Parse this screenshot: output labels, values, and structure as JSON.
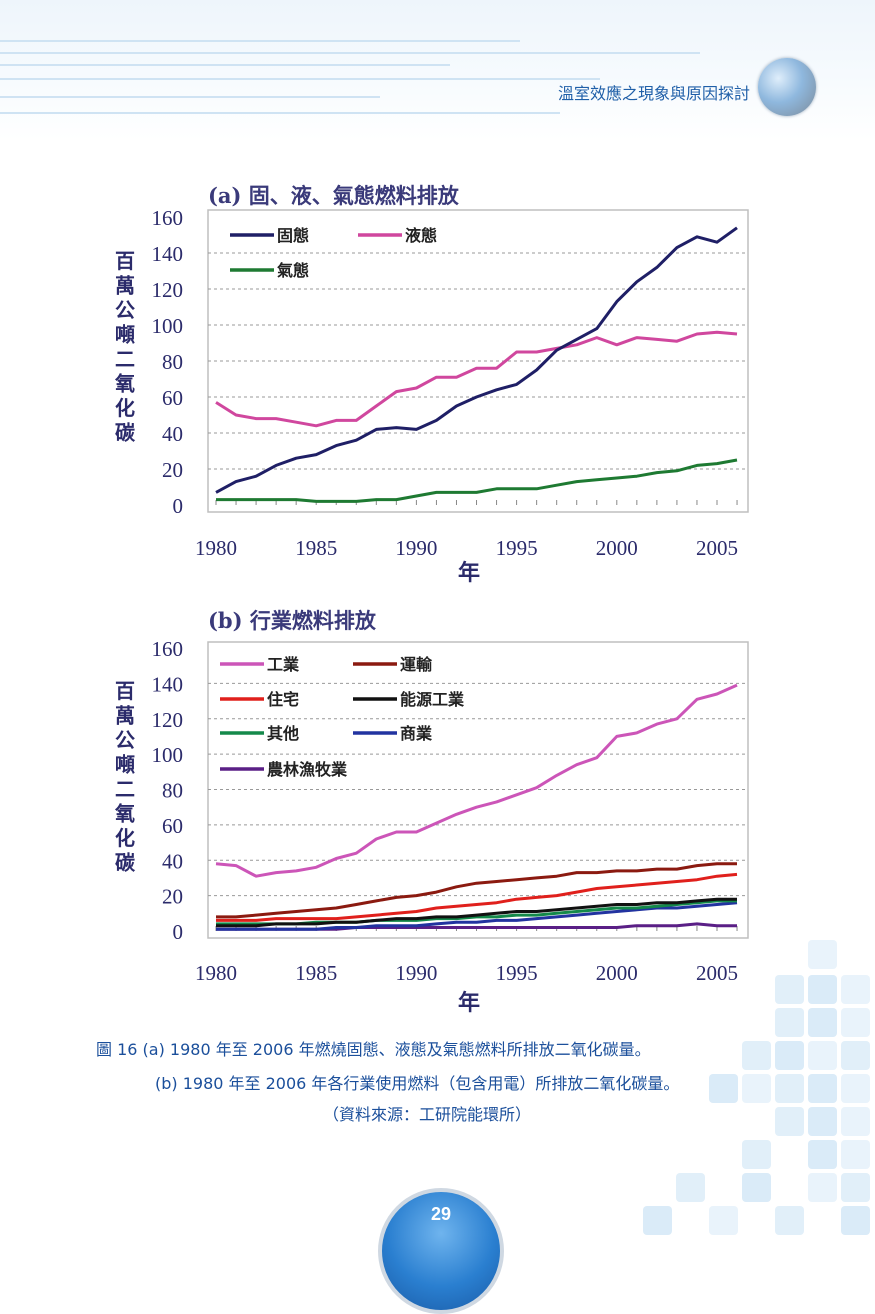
{
  "header": {
    "title": "溫室效應之現象與原因探討",
    "globe_icon": "globe-icon"
  },
  "caption": {
    "line1": "圖 16   (a) 1980 年至 2006 年燃燒固態、液態及氣態燃料所排放二氧化碳量。",
    "line2": "(b) 1980 年至 2006 年各行業使用燃料（包含用電）所排放二氧化碳量。",
    "line3": "（資料來源：工研院能環所）"
  },
  "page_number": "29",
  "chart_data": [
    {
      "type": "line",
      "title": "(a) 固、液、氣態燃料排放",
      "ylabel": "百萬公噸二氧化碳",
      "xlabel": "年",
      "ylim": [
        0,
        160
      ],
      "yticks": [
        0,
        20,
        40,
        60,
        80,
        100,
        120,
        140,
        160
      ],
      "xticks": [
        1980,
        1985,
        1990,
        1995,
        2000,
        2005
      ],
      "grid": true,
      "legend": "top-left",
      "x": [
        1980,
        1981,
        1982,
        1983,
        1984,
        1985,
        1986,
        1987,
        1988,
        1989,
        1990,
        1991,
        1992,
        1993,
        1994,
        1995,
        1996,
        1997,
        1998,
        1999,
        2000,
        2001,
        2002,
        2003,
        2004,
        2005,
        2006
      ],
      "series": [
        {
          "name": "固態",
          "color": "#1f1f66",
          "values": [
            7,
            13,
            16,
            22,
            26,
            28,
            33,
            36,
            42,
            43,
            42,
            47,
            55,
            60,
            64,
            67,
            75,
            86,
            92,
            98,
            113,
            124,
            132,
            143,
            149,
            146,
            154
          ]
        },
        {
          "name": "液態",
          "color": "#d0479e",
          "values": [
            57,
            50,
            48,
            48,
            46,
            44,
            47,
            47,
            55,
            63,
            65,
            71,
            71,
            76,
            76,
            85,
            85,
            87,
            89,
            93,
            89,
            93,
            92,
            91,
            95,
            96,
            95
          ]
        },
        {
          "name": "氣態",
          "color": "#1e7a32",
          "values": [
            3,
            3,
            3,
            3,
            3,
            2,
            2,
            2,
            3,
            3,
            5,
            7,
            7,
            7,
            9,
            9,
            9,
            11,
            13,
            14,
            15,
            16,
            18,
            19,
            22,
            23,
            25
          ]
        }
      ]
    },
    {
      "type": "line",
      "title": "(b) 行業燃料排放",
      "ylabel": "百萬公噸二氧化碳",
      "xlabel": "年",
      "ylim": [
        0,
        160
      ],
      "yticks": [
        0,
        20,
        40,
        60,
        80,
        100,
        120,
        140,
        160
      ],
      "xticks": [
        1980,
        1985,
        1990,
        1995,
        2000,
        2005
      ],
      "grid": true,
      "legend": "top-left",
      "x": [
        1980,
        1981,
        1982,
        1983,
        1984,
        1985,
        1986,
        1987,
        1988,
        1989,
        1990,
        1991,
        1992,
        1993,
        1994,
        1995,
        1996,
        1997,
        1998,
        1999,
        2000,
        2001,
        2002,
        2003,
        2004,
        2005,
        2006
      ],
      "series": [
        {
          "name": "工業",
          "color": "#cc55b8",
          "values": [
            38,
            37,
            31,
            33,
            34,
            36,
            41,
            44,
            52,
            56,
            56,
            61,
            66,
            70,
            73,
            77,
            81,
            88,
            94,
            98,
            110,
            112,
            117,
            120,
            131,
            134,
            139
          ]
        },
        {
          "name": "運輸",
          "color": "#8b1a10",
          "values": [
            8,
            8,
            9,
            10,
            11,
            12,
            13,
            15,
            17,
            19,
            20,
            22,
            25,
            27,
            28,
            29,
            30,
            31,
            33,
            33,
            34,
            34,
            35,
            35,
            37,
            38,
            38
          ]
        },
        {
          "name": "住宅",
          "color": "#e0201c",
          "values": [
            6,
            6,
            6,
            7,
            7,
            7,
            7,
            8,
            9,
            10,
            11,
            13,
            14,
            15,
            16,
            18,
            19,
            20,
            22,
            24,
            25,
            26,
            27,
            28,
            29,
            31,
            32
          ]
        },
        {
          "name": "能源工業",
          "color": "#111111",
          "values": [
            3,
            3,
            3,
            4,
            4,
            4,
            5,
            5,
            6,
            7,
            7,
            8,
            8,
            9,
            10,
            11,
            11,
            12,
            13,
            14,
            15,
            15,
            16,
            16,
            17,
            18,
            18
          ]
        },
        {
          "name": "其他",
          "color": "#14894a",
          "values": [
            4,
            4,
            4,
            4,
            4,
            5,
            5,
            5,
            6,
            6,
            6,
            7,
            7,
            8,
            8,
            9,
            9,
            10,
            11,
            12,
            13,
            13,
            14,
            15,
            16,
            17,
            17
          ]
        },
        {
          "name": "商業",
          "color": "#2233a0",
          "values": [
            1,
            1,
            1,
            1,
            1,
            1,
            2,
            2,
            3,
            3,
            3,
            4,
            5,
            5,
            6,
            6,
            7,
            8,
            9,
            10,
            11,
            12,
            13,
            13,
            14,
            15,
            16
          ]
        },
        {
          "name": "農林漁牧業",
          "color": "#5a1f86",
          "values": [
            1,
            1,
            1,
            1,
            1,
            1,
            1,
            2,
            2,
            2,
            2,
            2,
            2,
            2,
            2,
            2,
            2,
            2,
            2,
            2,
            2,
            3,
            3,
            3,
            4,
            3,
            3
          ]
        }
      ]
    }
  ]
}
